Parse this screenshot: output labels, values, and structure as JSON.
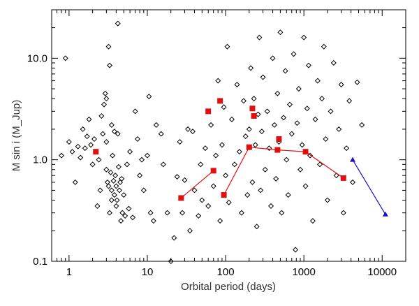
{
  "chart_data": {
    "type": "scatter",
    "xlabel": "Orbital period (days)",
    "ylabel": "M sin i (M_Jup)",
    "xscale": "log",
    "yscale": "log",
    "xlim": [
      0.6,
      20000
    ],
    "ylim": [
      0.1,
      30
    ],
    "x_ticks": [
      1,
      10,
      100,
      1000,
      10000
    ],
    "x_tick_labels": [
      "1",
      "10",
      "100",
      "1000",
      "10000"
    ],
    "y_ticks": [
      0.1,
      1,
      10
    ],
    "y_tick_labels": [
      "0.1",
      "1.0",
      "10.0"
    ],
    "grid": false,
    "colors": {
      "diamond": "#000000",
      "red": "#e01010",
      "blue": "#1a10c8"
    },
    "series": [
      {
        "marker": "diamond",
        "points": [
          [
            0.8,
            1.1
          ],
          [
            0.9,
            10.0
          ],
          [
            1.0,
            1.5
          ],
          [
            1.1,
            1.2
          ],
          [
            1.2,
            0.6
          ],
          [
            1.3,
            1.35
          ],
          [
            1.4,
            1.05
          ],
          [
            1.5,
            2.0
          ],
          [
            1.6,
            1.3
          ],
          [
            1.7,
            1.7
          ],
          [
            1.8,
            2.5
          ],
          [
            1.9,
            1.4
          ],
          [
            2.0,
            0.9
          ],
          [
            2.1,
            1.6
          ],
          [
            2.2,
            1.2
          ],
          [
            2.3,
            0.35
          ],
          [
            2.4,
            1.0
          ],
          [
            2.5,
            0.5
          ],
          [
            2.6,
            2.7
          ],
          [
            2.7,
            1.8
          ],
          [
            2.8,
            3.5
          ],
          [
            2.9,
            4.5
          ],
          [
            3.0,
            1.5
          ],
          [
            3.0,
            0.8
          ],
          [
            3.1,
            0.6
          ],
          [
            3.2,
            0.55
          ],
          [
            3.3,
            0.3
          ],
          [
            3.4,
            0.75
          ],
          [
            3.5,
            0.4
          ],
          [
            3.5,
            0.5
          ],
          [
            3.6,
            1.1
          ],
          [
            3.7,
            0.62
          ],
          [
            3.8,
            0.45
          ],
          [
            3.9,
            0.7
          ],
          [
            4.0,
            0.55
          ],
          [
            4.0,
            0.35
          ],
          [
            4.1,
            0.4
          ],
          [
            4.2,
            1.8
          ],
          [
            4.3,
            0.85
          ],
          [
            4.4,
            0.5
          ],
          [
            4.5,
            0.6
          ],
          [
            4.6,
            0.25
          ],
          [
            4.7,
            0.65
          ],
          [
            4.8,
            0.3
          ],
          [
            5.0,
            0.45
          ],
          [
            5.2,
            0.28
          ],
          [
            5.5,
            0.9
          ],
          [
            5.8,
            0.33
          ],
          [
            3.2,
            13.0
          ],
          [
            3.3,
            8.5
          ],
          [
            4.2,
            22.0
          ],
          [
            3.0,
            4.0
          ],
          [
            3.5,
            2.2
          ],
          [
            3.8,
            1.9
          ],
          [
            6.0,
            1.2
          ],
          [
            6.5,
            0.27
          ],
          [
            7.0,
            3.0
          ],
          [
            7.5,
            1.6
          ],
          [
            8.0,
            0.7
          ],
          [
            8.5,
            1.0
          ],
          [
            9.0,
            0.5
          ],
          [
            10.0,
            1.1
          ],
          [
            10.5,
            4.2
          ],
          [
            11.0,
            0.3
          ],
          [
            12.0,
            0.25
          ],
          [
            13.0,
            2.2
          ],
          [
            15.0,
            1.8
          ],
          [
            16.0,
            0.9
          ],
          [
            18.0,
            0.3
          ],
          [
            20.0,
            0.1
          ],
          [
            22.0,
            0.17
          ],
          [
            24.0,
            0.68
          ],
          [
            26.0,
            1.5
          ],
          [
            28.0,
            0.3
          ],
          [
            30.0,
            0.63
          ],
          [
            33.0,
            2.0
          ],
          [
            35.0,
            0.2
          ],
          [
            38.0,
            1.9
          ],
          [
            40.0,
            0.5
          ],
          [
            45.0,
            0.28
          ],
          [
            48.0,
            0.9
          ],
          [
            50.0,
            0.4
          ],
          [
            55.0,
            1.3
          ],
          [
            60.0,
            0.35
          ],
          [
            65.0,
            2.2
          ],
          [
            70.0,
            0.55
          ],
          [
            75.0,
            1.1
          ],
          [
            80.0,
            6.0
          ],
          [
            85.0,
            0.25
          ],
          [
            90.0,
            1.4
          ],
          [
            95.0,
            3.3
          ],
          [
            100.0,
            0.7
          ],
          [
            105.0,
            13.0
          ],
          [
            110.0,
            0.38
          ],
          [
            120.0,
            2.5
          ],
          [
            130.0,
            0.9
          ],
          [
            140.0,
            5.5
          ],
          [
            150.0,
            1.2
          ],
          [
            160.0,
            0.3
          ],
          [
            170.0,
            3.8
          ],
          [
            180.0,
            1.7
          ],
          [
            190.0,
            0.45
          ],
          [
            200.0,
            2.0
          ],
          [
            210.0,
            8.0
          ],
          [
            220.0,
            0.6
          ],
          [
            230.0,
            4.0
          ],
          [
            240.0,
            1.4
          ],
          [
            250.0,
            0.22
          ],
          [
            260.0,
            2.8
          ],
          [
            270.0,
            16.0
          ],
          [
            280.0,
            0.5
          ],
          [
            290.0,
            1.9
          ],
          [
            300.0,
            6.5
          ],
          [
            320.0,
            0.8
          ],
          [
            340.0,
            3.0
          ],
          [
            360.0,
            1.3
          ],
          [
            380.0,
            0.35
          ],
          [
            400.0,
            10.0
          ],
          [
            420.0,
            2.2
          ],
          [
            440.0,
            0.65
          ],
          [
            460.0,
            4.5
          ],
          [
            480.0,
            1.5
          ],
          [
            500.0,
            18.0
          ],
          [
            520.0,
            0.3
          ],
          [
            550.0,
            2.6
          ],
          [
            580.0,
            7.5
          ],
          [
            600.0,
            1.0
          ],
          [
            630.0,
            0.45
          ],
          [
            660.0,
            3.5
          ],
          [
            700.0,
            1.8
          ],
          [
            740.0,
            11.0
          ],
          [
            780.0,
            0.13
          ],
          [
            820.0,
            2.3
          ],
          [
            860.0,
            5.0
          ],
          [
            900.0,
            0.8
          ],
          [
            950.0,
            1.4
          ],
          [
            1000.0,
            16.0
          ],
          [
            1050.0,
            0.55
          ],
          [
            1100.0,
            3.2
          ],
          [
            1150.0,
            8.5
          ],
          [
            1200.0,
            1.1
          ],
          [
            1300.0,
            0.25
          ],
          [
            1400.0,
            2.5
          ],
          [
            1500.0,
            6.0
          ],
          [
            1600.0,
            0.9
          ],
          [
            1700.0,
            4.0
          ],
          [
            1800.0,
            13.0
          ],
          [
            1900.0,
            1.6
          ],
          [
            2000.0,
            0.4
          ],
          [
            2200.0,
            3.0
          ],
          [
            2400.0,
            9.0
          ],
          [
            2600.0,
            0.7
          ],
          [
            2800.0,
            2.0
          ],
          [
            3000.0,
            5.5
          ],
          [
            3200.0,
            0.3
          ],
          [
            3500.0,
            1.3
          ],
          [
            3800.0,
            3.8
          ],
          [
            4200.0,
            0.6
          ],
          [
            4800.0,
            5.8
          ],
          [
            5500.0,
            2.2
          ]
        ]
      },
      {
        "marker": "square",
        "color": "#e01010",
        "connect": false,
        "points": [
          [
            2.2,
            1.2
          ],
          [
            60,
            3.0
          ],
          [
            85,
            3.8
          ],
          [
            220,
            3.2
          ],
          [
            230,
            2.7
          ],
          [
            480,
            1.6
          ]
        ]
      },
      {
        "marker": "square",
        "color": "#e01010",
        "connect": true,
        "points": [
          [
            27,
            0.42
          ],
          [
            70,
            0.78
          ]
        ]
      },
      {
        "marker": "square",
        "color": "#e01010",
        "connect": true,
        "points": [
          [
            95,
            0.45
          ],
          [
            200,
            1.33
          ],
          [
            460,
            1.25
          ],
          [
            1050,
            1.2
          ],
          [
            3200,
            0.66
          ]
        ]
      },
      {
        "marker": "triangle",
        "color": "#1a10c8",
        "connect": true,
        "points": [
          [
            4200,
            1.0
          ],
          [
            11000,
            0.29
          ]
        ]
      }
    ]
  }
}
